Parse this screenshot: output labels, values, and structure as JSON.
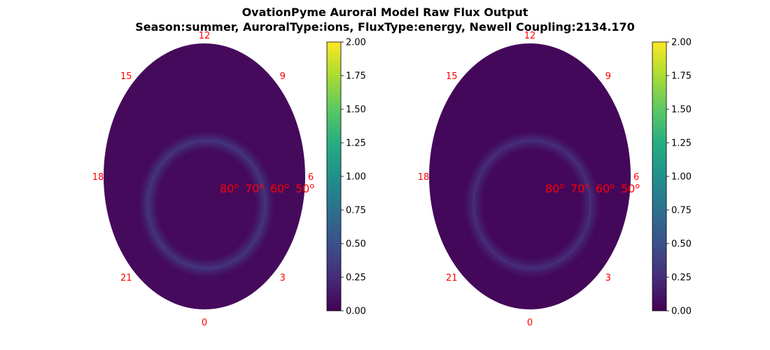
{
  "chart_data": {
    "title": "OvationPyme Auroral Model Raw Flux Output",
    "subtitle": "Season:summer, AuroralType:ions, FluxType:energy, Newell Coupling:2134.170",
    "type": "heatmap",
    "colormap": "viridis",
    "colorbar_range": [
      0,
      2
    ],
    "colorbar_ticks": [
      "0.00",
      "0.25",
      "0.50",
      "0.75",
      "1.00",
      "1.25",
      "1.50",
      "1.75",
      "2.00"
    ],
    "mlt_labels": [
      "12",
      "9",
      "6",
      "3",
      "0",
      "21",
      "18",
      "15"
    ],
    "lat_labels": [
      "80",
      "70",
      "60",
      "50"
    ],
    "lat_degree_mark": "o",
    "panels": [
      {
        "id": "left",
        "background_flux": 0.05,
        "oval_peak_flux": 0.35
      },
      {
        "id": "right",
        "background_flux": 0.04,
        "oval_peak_flux": 0.3
      }
    ]
  },
  "colors": {
    "label": "#ff0000",
    "viridis_stops": [
      "#440154",
      "#472c7a",
      "#3b518b",
      "#2c718e",
      "#21908d",
      "#27ad81",
      "#5cc863",
      "#aadc32",
      "#fde725"
    ]
  }
}
